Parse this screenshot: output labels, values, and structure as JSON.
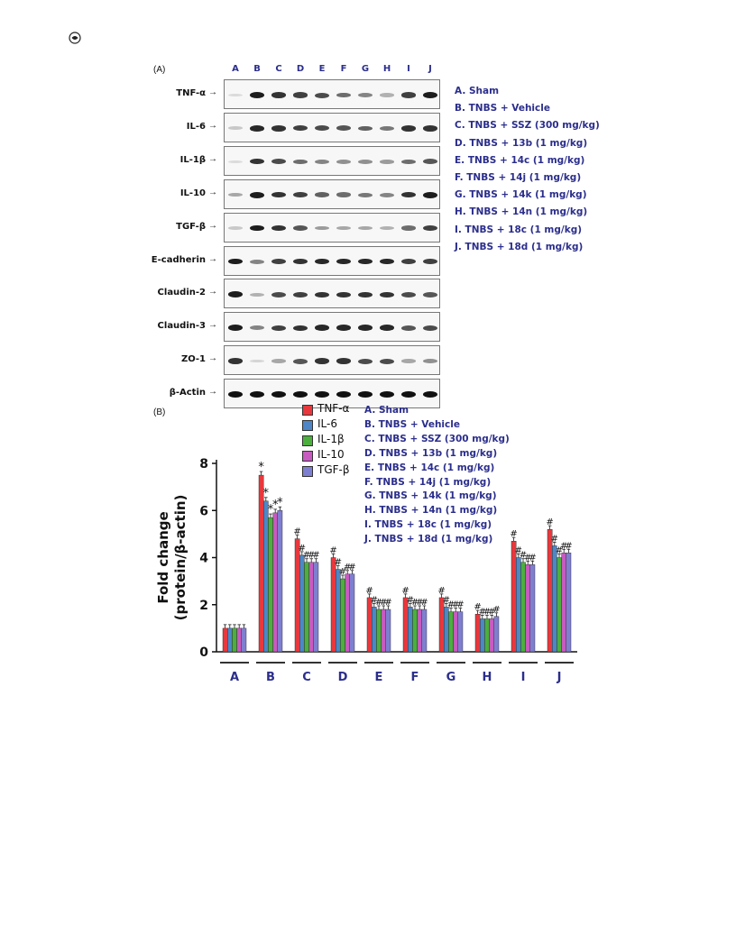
{
  "header": {
    "logo_icon": "publisher-logo-icon"
  },
  "panel_a": {
    "label": "(A)",
    "lane_letters": [
      "A",
      "B",
      "C",
      "D",
      "E",
      "F",
      "G",
      "H",
      "I",
      "J"
    ],
    "blots": [
      {
        "name": "TNF-α",
        "intensity": [
          0.1,
          0.95,
          0.85,
          0.8,
          0.75,
          0.6,
          0.5,
          0.3,
          0.8,
          0.95
        ]
      },
      {
        "name": "IL-6",
        "intensity": [
          0.2,
          0.9,
          0.85,
          0.8,
          0.75,
          0.7,
          0.65,
          0.55,
          0.85,
          0.85
        ]
      },
      {
        "name": "IL-1β",
        "intensity": [
          0.1,
          0.85,
          0.75,
          0.6,
          0.5,
          0.45,
          0.45,
          0.4,
          0.6,
          0.7
        ]
      },
      {
        "name": "IL-10",
        "intensity": [
          0.35,
          0.95,
          0.85,
          0.8,
          0.65,
          0.6,
          0.55,
          0.5,
          0.85,
          0.95
        ]
      },
      {
        "name": "TGF-β",
        "intensity": [
          0.2,
          0.95,
          0.85,
          0.7,
          0.4,
          0.35,
          0.35,
          0.3,
          0.6,
          0.8
        ]
      },
      {
        "name": "E-cadherin",
        "intensity": [
          0.95,
          0.5,
          0.8,
          0.85,
          0.9,
          0.9,
          0.9,
          0.9,
          0.8,
          0.8
        ]
      },
      {
        "name": "Claudin-2",
        "intensity": [
          0.95,
          0.3,
          0.75,
          0.8,
          0.85,
          0.85,
          0.85,
          0.85,
          0.75,
          0.7
        ]
      },
      {
        "name": "Claudin-3",
        "intensity": [
          0.95,
          0.5,
          0.8,
          0.85,
          0.9,
          0.9,
          0.9,
          0.9,
          0.7,
          0.75
        ]
      },
      {
        "name": "ZO-1",
        "intensity": [
          0.85,
          0.15,
          0.35,
          0.7,
          0.85,
          0.85,
          0.75,
          0.75,
          0.35,
          0.45
        ]
      },
      {
        "name": "β-Actin",
        "intensity": [
          1,
          1,
          1,
          1,
          1,
          1,
          1,
          1,
          1,
          1
        ]
      }
    ],
    "group_legend": [
      "A.  Sham",
      "B.  TNBS + Vehicle",
      "C.  TNBS + SSZ (300 mg/kg)",
      "D.  TNBS + 13b (1 mg/kg)",
      "E.  TNBS + 14c (1 mg/kg)",
      "F.  TNBS + 14j (1 mg/kg)",
      "G.  TNBS + 14k (1 mg/kg)",
      "H.  TNBS + 14n (1 mg/kg)",
      "I.   TNBS + 18c (1 mg/kg)",
      "J.   TNBS + 18d (1 mg/kg)"
    ]
  },
  "panel_b": {
    "label": "(B)",
    "group_legend": [
      "A.  Sham",
      "B.  TNBS + Vehicle",
      "C.  TNBS + SSZ (300 mg/kg)",
      "D.  TNBS + 13b (1 mg/kg)",
      "E.  TNBS + 14c (1 mg/kg)",
      "F.  TNBS + 14j (1 mg/kg)",
      "G.  TNBS + 14k (1 mg/kg)",
      "H.  TNBS + 14n (1 mg/kg)",
      "I.   TNBS + 18c (1 mg/kg)",
      "J.   TNBS + 18d (1 mg/kg)"
    ]
  },
  "chart_data": {
    "type": "bar",
    "ylabel": "Fold change\n(protein/β-actin)",
    "xlabel": "",
    "ylim": [
      0,
      8
    ],
    "yticks": [
      0,
      2,
      4,
      6,
      8
    ],
    "categories": [
      "A",
      "B",
      "C",
      "D",
      "E",
      "F",
      "G",
      "H",
      "I",
      "J"
    ],
    "series": [
      {
        "name": "TNF-α",
        "color": "#e8383d",
        "values": [
          1.0,
          7.5,
          4.8,
          4.0,
          2.3,
          2.3,
          2.3,
          1.6,
          4.7,
          5.2
        ],
        "marks": [
          "",
          "*",
          "#",
          "#",
          "#",
          "#",
          "#",
          "#",
          "#",
          "#"
        ]
      },
      {
        "name": "IL-6",
        "color": "#4f86c6",
        "values": [
          1.0,
          6.4,
          4.1,
          3.5,
          1.9,
          1.9,
          1.9,
          1.4,
          4.0,
          4.5
        ],
        "marks": [
          "",
          "*",
          "#",
          "#",
          "#",
          "#",
          "#",
          "#",
          "#",
          "#"
        ]
      },
      {
        "name": "IL-1β",
        "color": "#4caf3e",
        "values": [
          1.0,
          5.7,
          3.8,
          3.1,
          1.8,
          1.8,
          1.7,
          1.4,
          3.8,
          4.0
        ],
        "marks": [
          "",
          "*",
          "#",
          "#",
          "#",
          "#",
          "#",
          "#",
          "#",
          "#"
        ]
      },
      {
        "name": "IL-10",
        "color": "#c75bbf",
        "values": [
          1.0,
          5.9,
          3.8,
          3.3,
          1.8,
          1.8,
          1.7,
          1.4,
          3.7,
          4.2
        ],
        "marks": [
          "",
          "*",
          "#",
          "#",
          "#",
          "#",
          "#",
          "#",
          "#",
          "#"
        ]
      },
      {
        "name": "TGF-β",
        "color": "#7f7fd1",
        "values": [
          1.0,
          6.0,
          3.8,
          3.3,
          1.8,
          1.8,
          1.7,
          1.5,
          3.7,
          4.2
        ],
        "marks": [
          "",
          "*",
          "#",
          "#",
          "#",
          "#",
          "#",
          "#",
          "#",
          "#"
        ]
      }
    ],
    "legend": "top-left",
    "grid": false
  }
}
